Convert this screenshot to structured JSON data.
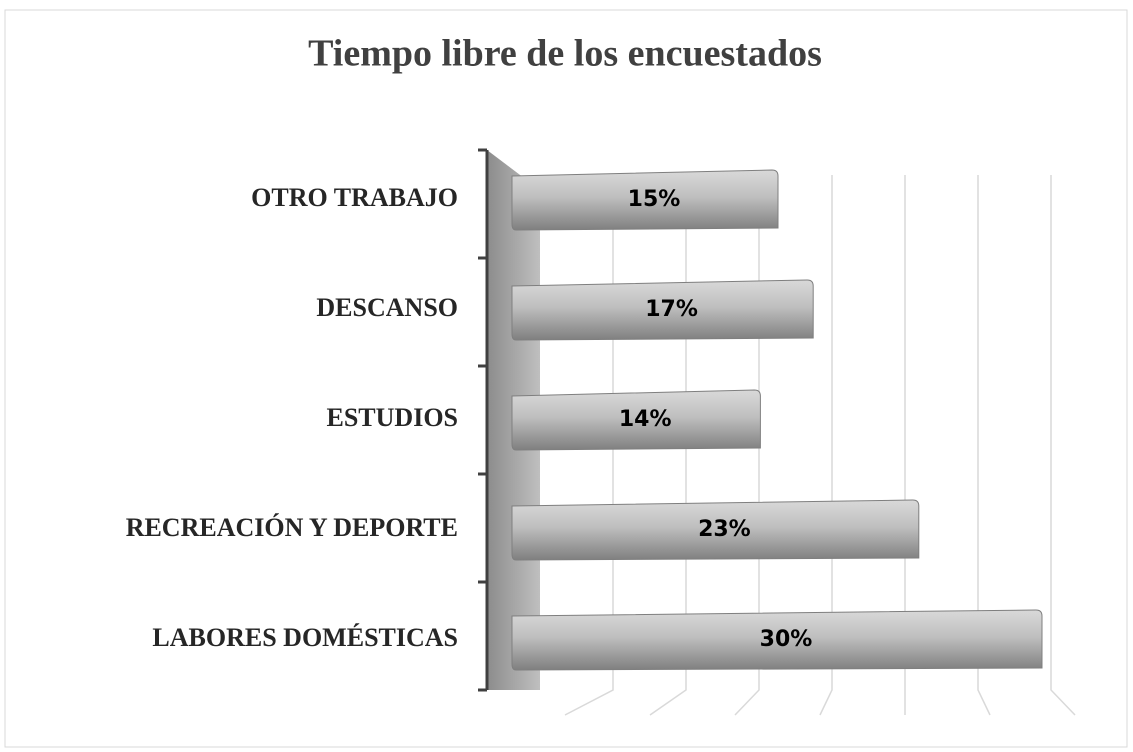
{
  "chart_data": {
    "type": "bar",
    "orientation": "horizontal",
    "title": "Tiempo libre de los encuestados",
    "categories": [
      "OTRO TRABAJO",
      "DESCANSO",
      "ESTUDIOS",
      "RECREACIÓN Y DEPORTE",
      "LABORES DOMÉSTICAS"
    ],
    "values": [
      15,
      17,
      14,
      23,
      30
    ],
    "value_labels": [
      "15%",
      "17%",
      "14%",
      "23%",
      "30%"
    ],
    "color": "#a6a6a6",
    "xlim": [
      0,
      35
    ],
    "xticks": [
      0,
      5,
      10,
      15,
      20,
      25,
      30,
      35
    ],
    "grid": true
  }
}
